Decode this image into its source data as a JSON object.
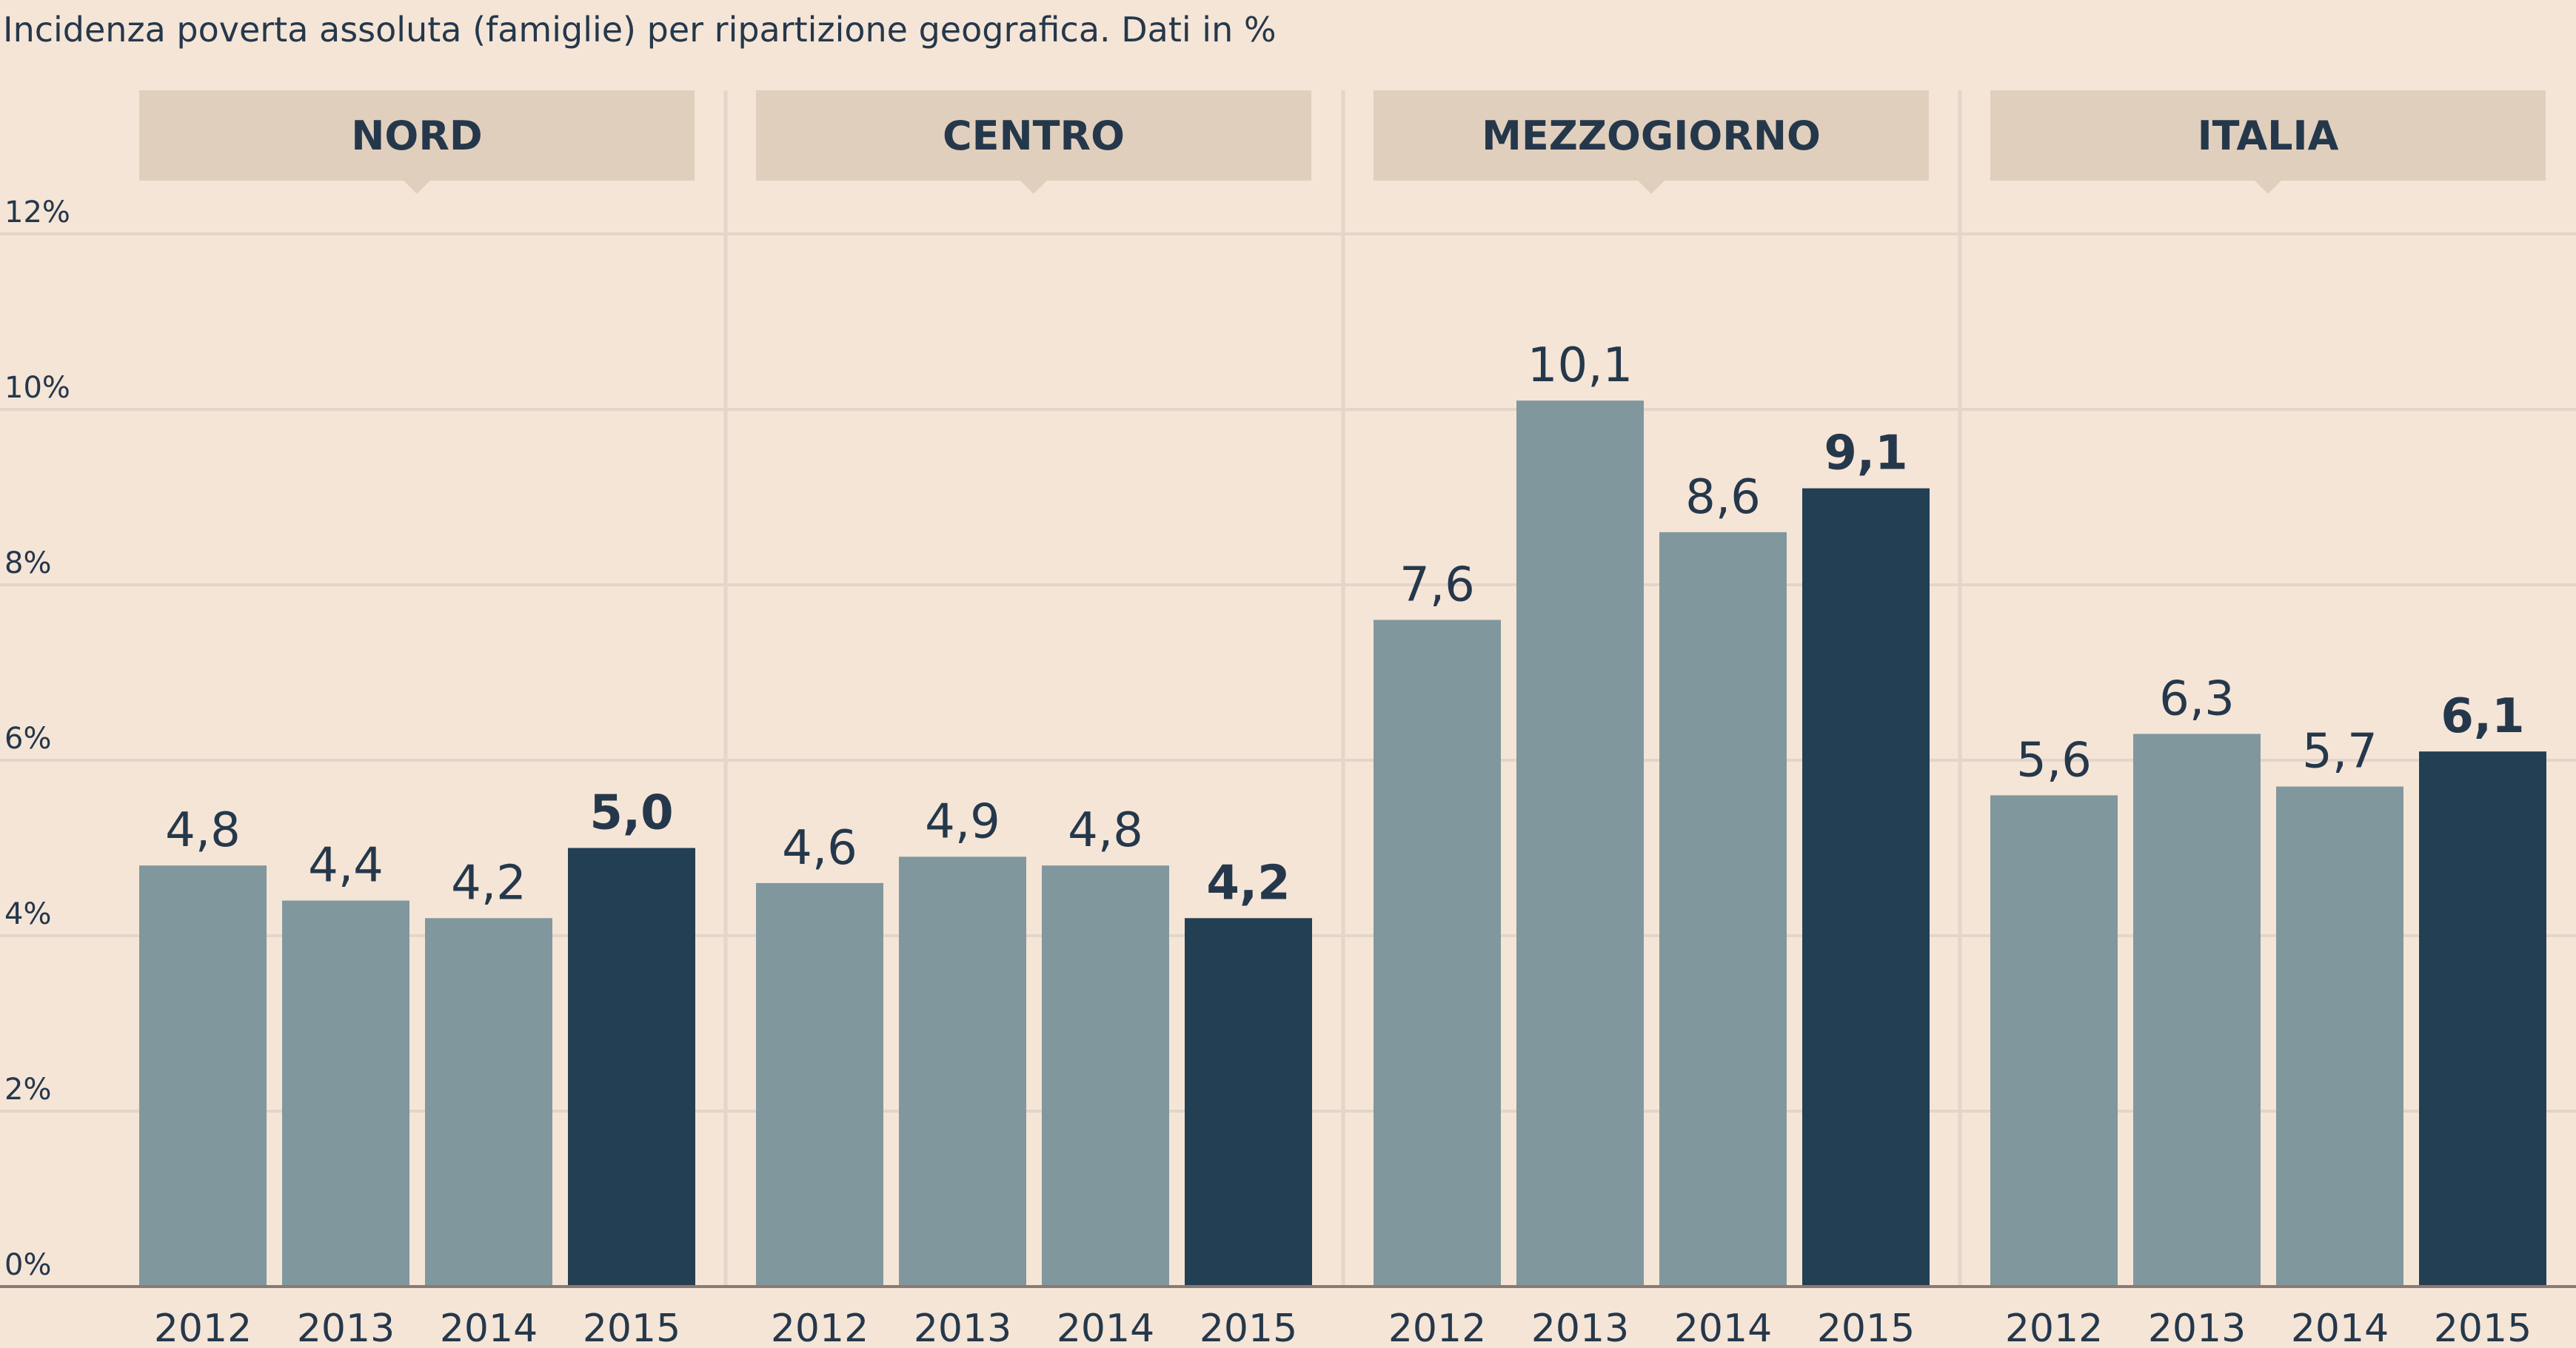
{
  "chart_data": {
    "type": "bar",
    "title": "Incidenza poverta assoluta (famiglie) per ripartizione geografica. Dati in %",
    "xlabel": "",
    "ylabel": "",
    "ylim": [
      0,
      12
    ],
    "y_ticks": [
      "0%",
      "2%",
      "4%",
      "6%",
      "8%",
      "10%",
      "12%"
    ],
    "grid": true,
    "categories": [
      "2012",
      "2013",
      "2014",
      "2015"
    ],
    "value_labels_decimal_separator": ",",
    "highlight_category": "2015",
    "colors": {
      "default_bar": "#80979e",
      "highlight_bar": "#233f54",
      "background": "#f5e5d7",
      "panel_header": "#e1cfbe"
    },
    "panels": [
      {
        "label": "NORD",
        "values": [
          4.8,
          4.4,
          4.2,
          5.0
        ],
        "value_labels": [
          "4,8",
          "4,4",
          "4,2",
          "5,0"
        ]
      },
      {
        "label": "CENTRO",
        "values": [
          4.6,
          4.9,
          4.8,
          4.2
        ],
        "value_labels": [
          "4,6",
          "4,9",
          "4,8",
          "4,2"
        ]
      },
      {
        "label": "MEZZOGIORNO",
        "values": [
          7.6,
          10.1,
          8.6,
          9.1
        ],
        "value_labels": [
          "7,6",
          "10,1",
          "8,6",
          "9,1"
        ]
      },
      {
        "label": "ITALIA",
        "values": [
          5.6,
          6.3,
          5.7,
          6.1
        ],
        "value_labels": [
          "5,6",
          "6,3",
          "5,7",
          "6,1"
        ]
      }
    ]
  }
}
